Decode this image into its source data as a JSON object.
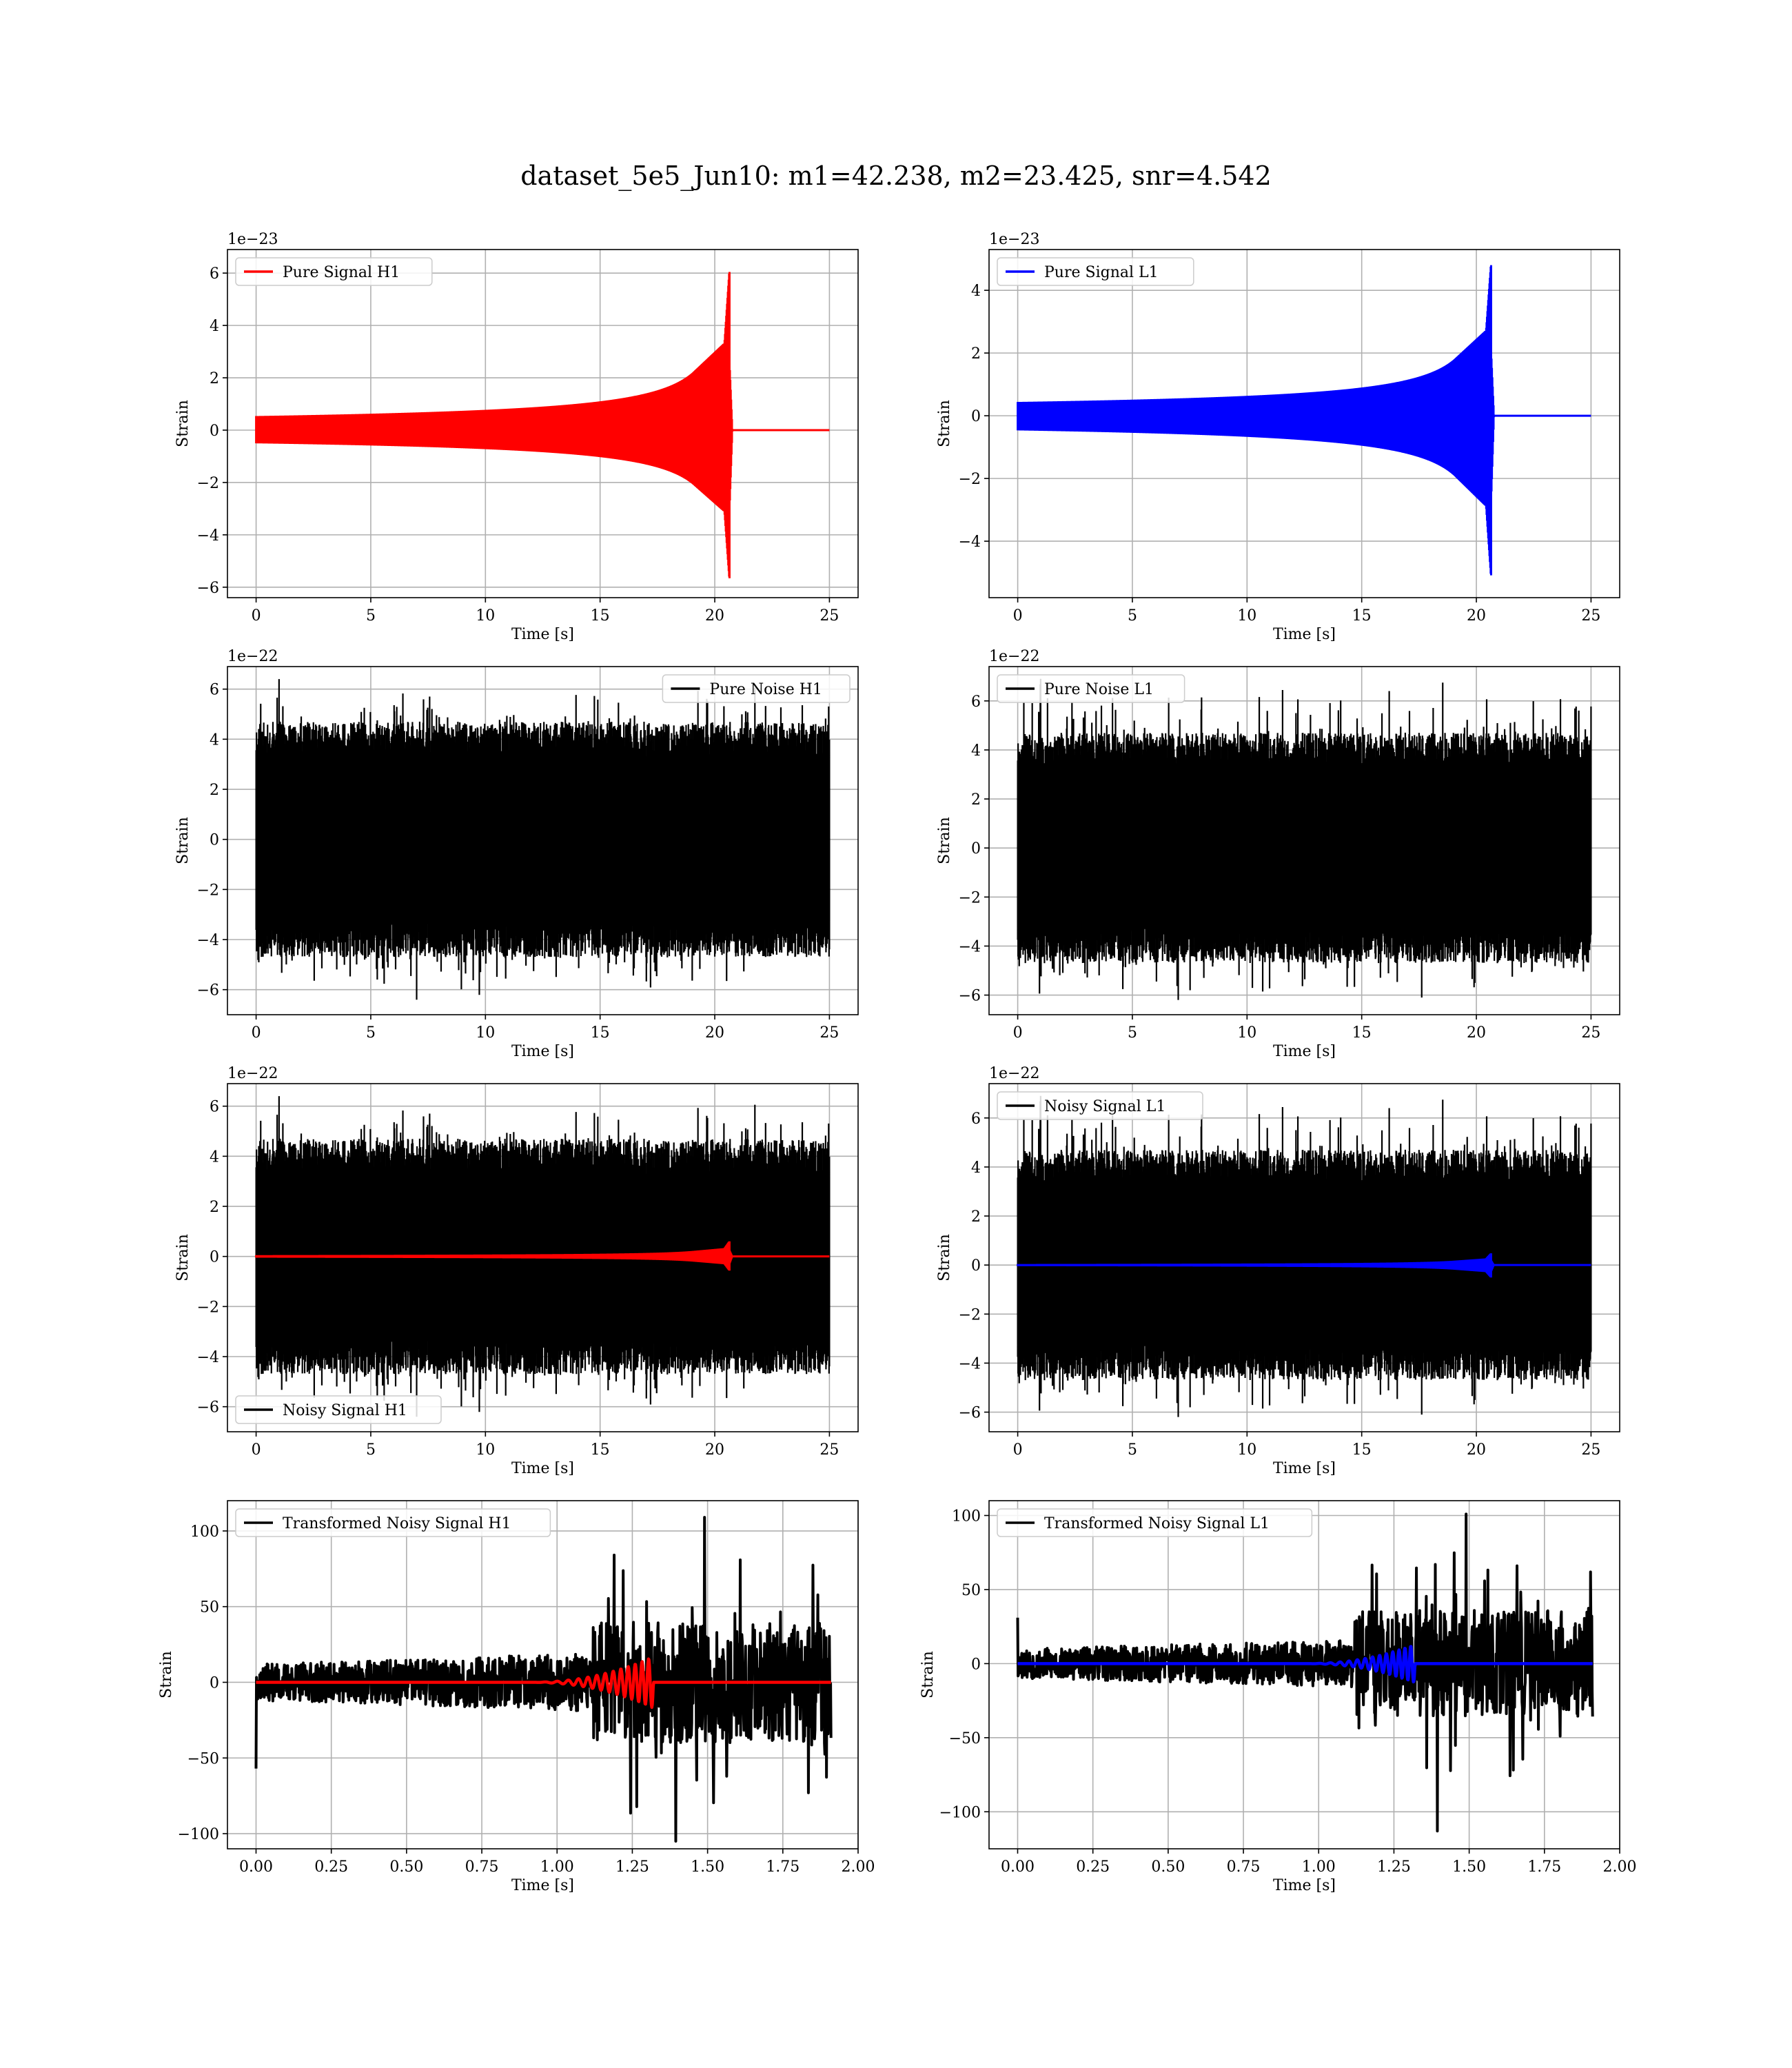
{
  "figure": {
    "title": "dataset_5e5_Jun10: m1=42.238, m2=23.425, snr=4.542"
  },
  "colors": {
    "red": "#ff0000",
    "blue": "#0000ff",
    "black": "#000000",
    "grid": "#b0b0b0"
  },
  "chart_data": [
    {
      "type": "line",
      "panel": "Pure Signal H1",
      "legend": "upper left",
      "grid": true,
      "xlabel": "Time [s]",
      "ylabel": "Strain",
      "offset_text": "1e−23",
      "xlim": [
        -1.25,
        26.25
      ],
      "ylim": [
        -6.4,
        6.9
      ],
      "xticks": [
        0,
        5,
        10,
        15,
        20,
        25
      ],
      "yticks": [
        -6,
        -4,
        -2,
        0,
        2,
        4,
        6
      ],
      "series": [
        {
          "name": "Pure Signal H1",
          "color": "#ff0000",
          "kind": "chirp",
          "x_range": [
            0,
            25
          ],
          "t_merge": 20.65,
          "peak_max": 6.3,
          "peak_min": -5.9,
          "plateau": 2.2,
          "fill": true
        }
      ]
    },
    {
      "type": "line",
      "panel": "Pure Signal L1",
      "legend": "upper left",
      "grid": true,
      "xlabel": "Time [s]",
      "ylabel": "Strain",
      "offset_text": "1e−23",
      "xlim": [
        -1.25,
        26.25
      ],
      "ylim": [
        -5.8,
        5.3
      ],
      "xticks": [
        0,
        5,
        10,
        15,
        20,
        25
      ],
      "yticks": [
        -4,
        -2,
        0,
        2,
        4
      ],
      "series": [
        {
          "name": "Pure Signal L1",
          "color": "#0000ff",
          "kind": "chirp",
          "x_range": [
            0,
            25
          ],
          "t_merge": 20.65,
          "peak_max": 5.0,
          "peak_min": -5.3,
          "plateau": 1.8,
          "fill": true
        }
      ]
    },
    {
      "type": "line",
      "panel": "Pure Noise H1",
      "legend": "upper right",
      "grid": true,
      "xlabel": "Time [s]",
      "ylabel": "Strain",
      "offset_text": "1e−22",
      "xlim": [
        -1.25,
        26.25
      ],
      "ylim": [
        -7.0,
        6.9
      ],
      "xticks": [
        0,
        5,
        10,
        15,
        20,
        25
      ],
      "yticks": [
        -6,
        -4,
        -2,
        0,
        2,
        4,
        6
      ],
      "series": [
        {
          "name": "Pure Noise H1",
          "color": "#000000",
          "kind": "noise",
          "x_range": [
            0,
            25
          ],
          "max": 6.4,
          "min": -6.4,
          "seed": 11
        }
      ]
    },
    {
      "type": "line",
      "panel": "Pure Noise L1",
      "legend": "upper left",
      "grid": true,
      "xlabel": "Time [s]",
      "ylabel": "Strain",
      "offset_text": "1e−22",
      "xlim": [
        -1.25,
        26.25
      ],
      "ylim": [
        -6.8,
        7.4
      ],
      "xticks": [
        0,
        5,
        10,
        15,
        20,
        25
      ],
      "yticks": [
        -6,
        -4,
        -2,
        0,
        2,
        4,
        6
      ],
      "series": [
        {
          "name": "Pure Noise L1",
          "color": "#000000",
          "kind": "noise",
          "x_range": [
            0,
            25
          ],
          "max": 6.9,
          "min": -6.2,
          "seed": 23
        }
      ]
    },
    {
      "type": "line",
      "panel": "Noisy Signal H1",
      "legend": "lower left",
      "grid": true,
      "xlabel": "Time [s]",
      "ylabel": "Strain",
      "offset_text": "1e−22",
      "xlim": [
        -1.25,
        26.25
      ],
      "ylim": [
        -7.0,
        6.9
      ],
      "xticks": [
        0,
        5,
        10,
        15,
        20,
        25
      ],
      "yticks": [
        -6,
        -4,
        -2,
        0,
        2,
        4,
        6
      ],
      "series": [
        {
          "name": "Noisy Signal H1",
          "color": "#000000",
          "kind": "noise",
          "x_range": [
            0,
            25
          ],
          "max": 6.4,
          "min": -6.4,
          "seed": 11
        },
        {
          "color": "#ff0000",
          "kind": "chirp",
          "x_range": [
            0,
            25
          ],
          "t_merge": 20.65,
          "peak_max": 0.63,
          "peak_min": -0.59,
          "plateau": 0.22,
          "fill": true
        }
      ]
    },
    {
      "type": "line",
      "panel": "Noisy Signal L1",
      "legend": "upper left",
      "grid": true,
      "xlabel": "Time [s]",
      "ylabel": "Strain",
      "offset_text": "1e−22",
      "xlim": [
        -1.25,
        26.25
      ],
      "ylim": [
        -6.8,
        7.4
      ],
      "xticks": [
        0,
        5,
        10,
        15,
        20,
        25
      ],
      "yticks": [
        -6,
        -4,
        -2,
        0,
        2,
        4,
        6
      ],
      "series": [
        {
          "name": "Noisy Signal L1",
          "color": "#000000",
          "kind": "noise",
          "x_range": [
            0,
            25
          ],
          "max": 6.9,
          "min": -6.2,
          "seed": 23
        },
        {
          "color": "#0000ff",
          "kind": "chirp",
          "x_range": [
            0,
            25
          ],
          "t_merge": 20.65,
          "peak_max": 0.5,
          "peak_min": -0.53,
          "plateau": 0.18,
          "fill": true
        }
      ]
    },
    {
      "type": "line",
      "panel": "Transformed Noisy Signal H1",
      "legend": "upper left",
      "grid": true,
      "xlabel": "Time [s]",
      "ylabel": "Strain",
      "offset_text": "",
      "xlim": [
        -0.095,
        2.0
      ],
      "ylim": [
        -110,
        120
      ],
      "xticks": [
        0.0,
        0.25,
        0.5,
        0.75,
        1.0,
        1.25,
        1.5,
        1.75,
        2.0
      ],
      "yticks": [
        -100,
        -50,
        0,
        50,
        100
      ],
      "series": [
        {
          "name": "Transformed Noisy Signal H1",
          "color": "#000000",
          "kind": "whitened",
          "x_range": [
            0,
            1.91
          ],
          "jump": 1.12,
          "early_amp": 12,
          "late_amp": 40,
          "max": 109,
          "min": -105,
          "seed": 37,
          "spike_start": -57
        },
        {
          "color": "#ff0000",
          "kind": "oscillation",
          "x_range": [
            0,
            1.91
          ],
          "t_start": 0.9,
          "t_end": 1.32,
          "peak": 17,
          "fill": false
        }
      ]
    },
    {
      "type": "line",
      "panel": "Transformed Noisy Signal L1",
      "legend": "upper left",
      "grid": true,
      "xlabel": "Time [s]",
      "ylabel": "Strain",
      "offset_text": "",
      "xlim": [
        -0.095,
        2.0
      ],
      "ylim": [
        -125,
        110
      ],
      "xticks": [
        0.0,
        0.25,
        0.5,
        0.75,
        1.0,
        1.25,
        1.5,
        1.75,
        2.0
      ],
      "yticks": [
        -100,
        -50,
        0,
        50,
        100
      ],
      "series": [
        {
          "name": "Transformed Noisy Signal L1",
          "color": "#000000",
          "kind": "whitened",
          "x_range": [
            0,
            1.91
          ],
          "jump": 1.12,
          "early_amp": 10,
          "late_amp": 36,
          "max": 101,
          "min": -113,
          "seed": 53,
          "spike_start": 31
        },
        {
          "color": "#0000ff",
          "kind": "oscillation",
          "x_range": [
            0,
            1.91
          ],
          "t_start": 0.95,
          "t_end": 1.32,
          "peak": 13,
          "fill": false
        }
      ]
    }
  ]
}
